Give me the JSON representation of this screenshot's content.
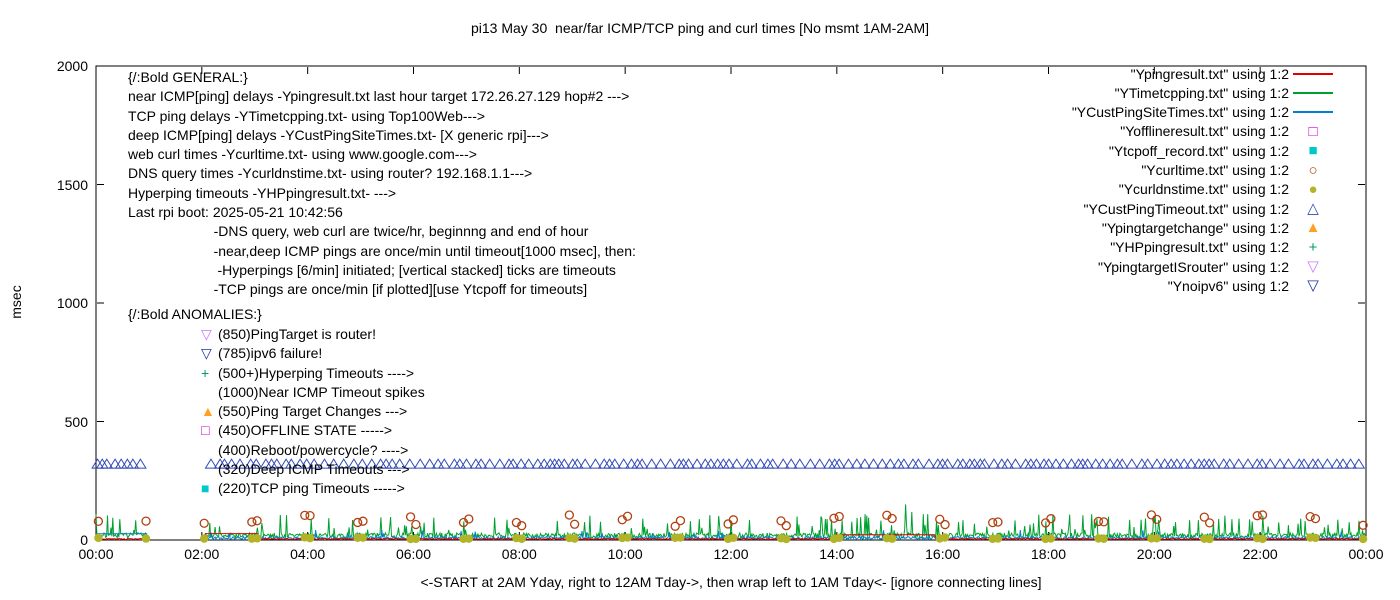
{
  "chart_data": {
    "type": "line",
    "title": "pi13 May 30  near/far ICMP/TCP ping and curl times [No msmt 1AM-2AM]",
    "ylabel": "msec",
    "xlabel": "<-START at 2AM Yday, right to 12AM Tday->, then wrap left to 1AM Tday<- [ignore connecting lines]",
    "ylim": [
      0,
      2000
    ],
    "yticks": [
      0,
      500,
      1000,
      1500,
      2000
    ],
    "xtick_hours": [
      0,
      2,
      4,
      6,
      8,
      10,
      12,
      14,
      16,
      18,
      20,
      22,
      24
    ],
    "xtick_labels": [
      "00:00",
      "02:00",
      "04:00",
      "06:00",
      "08:00",
      "10:00",
      "12:00",
      "14:00",
      "16:00",
      "18:00",
      "20:00",
      "22:00",
      "00:00"
    ],
    "grid": false,
    "legend_position": "top-right-inside",
    "no_measurement_gap_hours": [
      0.98,
      2.04
    ],
    "legend": [
      {
        "label": "\"Ypingresult.txt\" using 1:2",
        "swatch": "line",
        "color": "#e10000"
      },
      {
        "label": "\"YTimetcpping.txt\" using 1:2",
        "swatch": "line",
        "color": "#00a030"
      },
      {
        "label": "\"YCustPingSiteTimes.txt\" using 1:2",
        "swatch": "line",
        "color": "#0080d0"
      },
      {
        "label": "\"Yofflineresult.txt\" using 1:2",
        "swatch": "square-open",
        "color": "#d800d8"
      },
      {
        "label": "\"Ytcpoff_record.txt\" using 1:2",
        "swatch": "square-filled",
        "color": "#00c8c8"
      },
      {
        "label": "\"Ycurltime.txt\" using 1:2",
        "swatch": "circle-open",
        "color": "#b04010"
      },
      {
        "label": "\"Ycurldnstime.txt\" using 1:2",
        "swatch": "circle-filled",
        "color": "#b3b327"
      },
      {
        "label": "\"YCustPingTimeout.txt\" using 1:2",
        "swatch": "triangle-open",
        "color": "#3048b8"
      },
      {
        "label": "\"Ypingtargetchange\" using 1:2",
        "swatch": "triangle-filled",
        "color": "#ffa020"
      },
      {
        "label": "\"YHPpingresult.txt\" using 1:2",
        "swatch": "plus",
        "color": "#00a060"
      },
      {
        "label": "\"YpingtargetISrouter\" using 1:2",
        "swatch": "triangle-down-open",
        "color": "#c878ff"
      },
      {
        "label": "\"Ynoipv6\" using 1:2",
        "swatch": "triangle-down-open",
        "color": "#2030a0"
      }
    ],
    "general_notes": [
      "{/:Bold GENERAL:}",
      "near ICMP[ping] delays -Ypingresult.txt last hour target 172.26.27.129 hop#2 --->",
      "TCP ping delays -YTimetcpping.txt- using Top100Web--->",
      "deep ICMP[ping] delays -YCustPingSiteTimes.txt- [X generic rpi]--->",
      "web curl times -Ycurltime.txt- using www.google.com--->",
      "DNS query times -Ycurldnstime.txt- using router? 192.168.1.1--->",
      "Hyperping timeouts -YHPpingresult.txt- --->",
      "Last rpi boot: 2025-05-21 10:42:56",
      "                      -DNS query, web curl are twice/hr, beginnng and end of hour",
      "                      -near,deep ICMP pings are once/min until timeout[1000 msec], then:",
      "                       -Hyperpings [6/min] initiated; [vertical stacked] ticks are timeouts",
      "                      -TCP pings are once/min [if plotted][use Ytcpoff for timeouts]"
    ],
    "anomalies_heading": "{/:Bold ANOMALIES:}",
    "anomalies": [
      {
        "marker": "triangle-down-open",
        "color": "#c878ff",
        "text": "(850)PingTarget is router!"
      },
      {
        "marker": "triangle-down-open",
        "color": "#2030a0",
        "text": "(785)ipv6 failure!"
      },
      {
        "marker": "plus",
        "color": "#00a060",
        "text": "(500+)Hyperping Timeouts ---->"
      },
      {
        "marker": "none",
        "color": "",
        "text": "(1000)Near ICMP Timeout spikes"
      },
      {
        "marker": "triangle-filled",
        "color": "#ffa020",
        "text": "(550)Ping Target Changes --->"
      },
      {
        "marker": "square-open",
        "color": "#d800d8",
        "text": "(450)OFFLINE STATE ----->"
      },
      {
        "marker": "none",
        "color": "",
        "text": "(400)Reboot/powercycle? ---->"
      },
      {
        "marker": "none",
        "color": "",
        "text": "(320)Deep ICMP Timeouts --->"
      },
      {
        "marker": "square-filled",
        "color": "#00c8c8",
        "text": "(220)TCP ping Timeouts ----->"
      }
    ],
    "line_series": [
      {
        "name": "YTimetcpping.txt",
        "color": "#00a030",
        "base_msec": 8,
        "noise_msec": 22,
        "spike_chance": 0.1,
        "spike_min_msec": 40,
        "spike_max_msec": 110,
        "seed": 7,
        "extra_spikes": [
          {
            "x": 2.15,
            "y": 72
          },
          {
            "x": 2.25,
            "y": 55
          },
          {
            "x": 15.3,
            "y": 150
          },
          {
            "x": 15.42,
            "y": 118
          }
        ]
      },
      {
        "name": "YCustPingSiteTimes.txt",
        "color": "#0080d0",
        "base_msec": 3,
        "noise_msec": 12,
        "spike_chance": 0.02,
        "spike_min_msec": 25,
        "spike_max_msec": 45,
        "seed": 11,
        "flat_segments": [
          {
            "from": 0,
            "to": 0.97,
            "y": 26
          }
        ]
      },
      {
        "name": "Ypingresult.txt",
        "color": "#e10000",
        "base_msec": 2,
        "noise_msec": 5,
        "seed": 3,
        "flat_segments": [
          {
            "from": 2.06,
            "to": 3.05,
            "y": 27
          },
          {
            "from": 14.0,
            "to": 15.85,
            "y": 22
          }
        ]
      }
    ],
    "point_series": [
      {
        "name": "YCustPingTimeout.txt",
        "marker": "triangle-open",
        "color": "#3048b8",
        "schedule": "dense-row",
        "y_msec": 320,
        "mean_interval_hours": 0.14,
        "seed": 23
      },
      {
        "name": "Ycurltime.txt",
        "marker": "circle-open",
        "color": "#b04010",
        "schedule": "twice-hourly-pairs",
        "y_min_msec": 55,
        "y_max_msec": 110,
        "seed": 21
      },
      {
        "name": "Ycurldnstime.txt",
        "marker": "circle-filled",
        "color": "#b3b327",
        "schedule": "twice-hourly-pairs",
        "y_min_msec": 4,
        "y_max_msec": 12,
        "seed": 22
      }
    ]
  }
}
